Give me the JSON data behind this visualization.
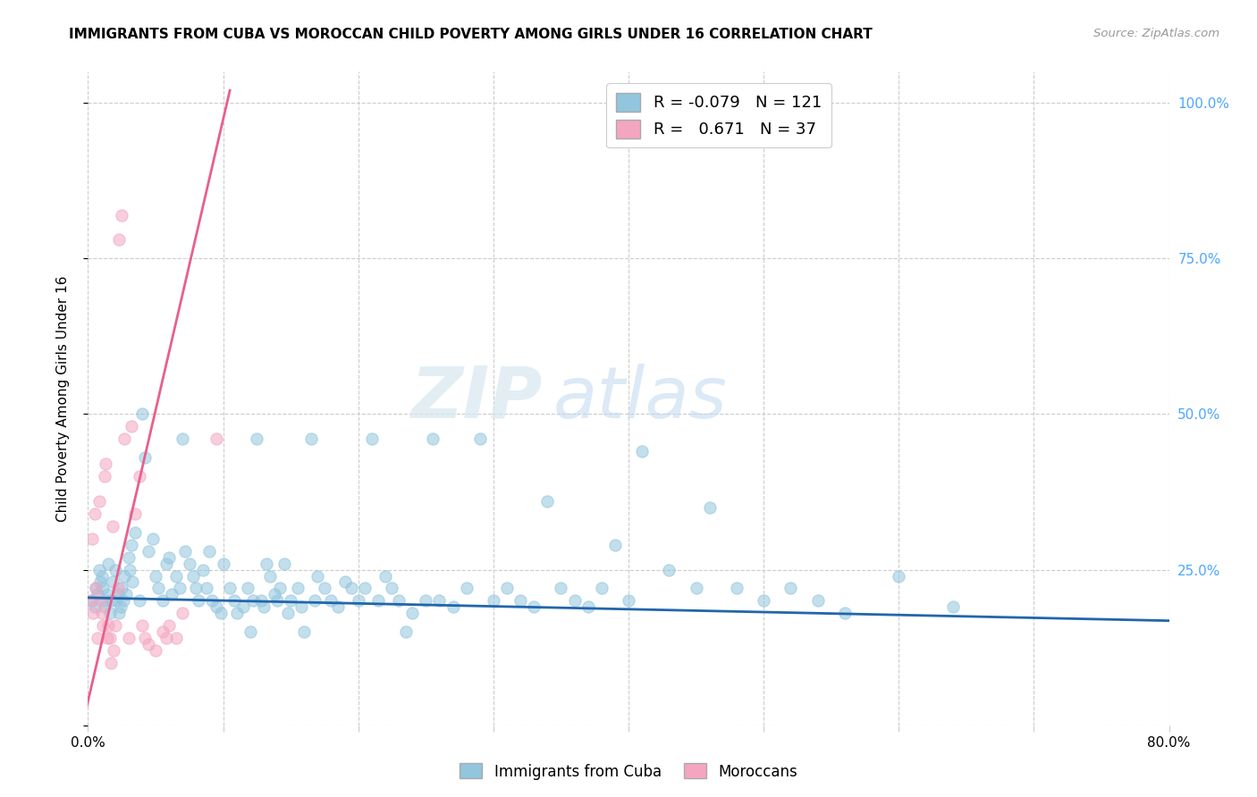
{
  "title": "IMMIGRANTS FROM CUBA VS MOROCCAN CHILD POVERTY AMONG GIRLS UNDER 16 CORRELATION CHART",
  "source": "Source: ZipAtlas.com",
  "ylabel": "Child Poverty Among Girls Under 16",
  "xlim": [
    0.0,
    0.8
  ],
  "ylim": [
    0.0,
    1.05
  ],
  "blue_color": "#92c5de",
  "pink_color": "#f4a6c0",
  "blue_line_color": "#2166ac",
  "pink_line_color": "#e8608a",
  "legend_blue_r": "-0.079",
  "legend_blue_n": "121",
  "legend_pink_r": "0.671",
  "legend_pink_n": "37",
  "blue_trendline_x": [
    0.0,
    0.8
  ],
  "blue_trendline_y": [
    0.205,
    0.168
  ],
  "pink_trendline_x": [
    -0.002,
    0.105
  ],
  "pink_trendline_y": [
    0.02,
    1.02
  ],
  "blue_scatter_x": [
    0.003,
    0.005,
    0.006,
    0.007,
    0.008,
    0.009,
    0.01,
    0.011,
    0.012,
    0.013,
    0.014,
    0.015,
    0.016,
    0.017,
    0.018,
    0.02,
    0.021,
    0.022,
    0.023,
    0.024,
    0.025,
    0.026,
    0.027,
    0.028,
    0.03,
    0.031,
    0.032,
    0.033,
    0.035,
    0.038,
    0.04,
    0.042,
    0.045,
    0.048,
    0.05,
    0.052,
    0.055,
    0.058,
    0.06,
    0.062,
    0.065,
    0.068,
    0.07,
    0.072,
    0.075,
    0.078,
    0.08,
    0.082,
    0.085,
    0.088,
    0.09,
    0.092,
    0.095,
    0.098,
    0.1,
    0.105,
    0.108,
    0.11,
    0.115,
    0.118,
    0.12,
    0.122,
    0.125,
    0.128,
    0.13,
    0.132,
    0.135,
    0.138,
    0.14,
    0.142,
    0.145,
    0.148,
    0.15,
    0.155,
    0.158,
    0.16,
    0.165,
    0.168,
    0.17,
    0.175,
    0.18,
    0.185,
    0.19,
    0.195,
    0.2,
    0.205,
    0.21,
    0.215,
    0.22,
    0.225,
    0.23,
    0.235,
    0.24,
    0.25,
    0.255,
    0.26,
    0.27,
    0.28,
    0.29,
    0.3,
    0.31,
    0.32,
    0.33,
    0.34,
    0.35,
    0.36,
    0.37,
    0.38,
    0.39,
    0.4,
    0.41,
    0.43,
    0.45,
    0.46,
    0.48,
    0.5,
    0.52,
    0.54,
    0.56,
    0.6,
    0.64
  ],
  "blue_scatter_y": [
    0.2,
    0.19,
    0.22,
    0.21,
    0.25,
    0.23,
    0.24,
    0.22,
    0.19,
    0.2,
    0.21,
    0.26,
    0.18,
    0.2,
    0.23,
    0.25,
    0.2,
    0.21,
    0.18,
    0.19,
    0.22,
    0.2,
    0.24,
    0.21,
    0.27,
    0.25,
    0.29,
    0.23,
    0.31,
    0.2,
    0.5,
    0.43,
    0.28,
    0.3,
    0.24,
    0.22,
    0.2,
    0.26,
    0.27,
    0.21,
    0.24,
    0.22,
    0.46,
    0.28,
    0.26,
    0.24,
    0.22,
    0.2,
    0.25,
    0.22,
    0.28,
    0.2,
    0.19,
    0.18,
    0.26,
    0.22,
    0.2,
    0.18,
    0.19,
    0.22,
    0.15,
    0.2,
    0.46,
    0.2,
    0.19,
    0.26,
    0.24,
    0.21,
    0.2,
    0.22,
    0.26,
    0.18,
    0.2,
    0.22,
    0.19,
    0.15,
    0.46,
    0.2,
    0.24,
    0.22,
    0.2,
    0.19,
    0.23,
    0.22,
    0.2,
    0.22,
    0.46,
    0.2,
    0.24,
    0.22,
    0.2,
    0.15,
    0.18,
    0.2,
    0.46,
    0.2,
    0.19,
    0.22,
    0.46,
    0.2,
    0.22,
    0.2,
    0.19,
    0.36,
    0.22,
    0.2,
    0.19,
    0.22,
    0.29,
    0.2,
    0.44,
    0.25,
    0.22,
    0.35,
    0.22,
    0.2,
    0.22,
    0.2,
    0.18,
    0.24,
    0.19
  ],
  "pink_scatter_x": [
    0.002,
    0.003,
    0.004,
    0.005,
    0.006,
    0.007,
    0.008,
    0.009,
    0.01,
    0.011,
    0.012,
    0.013,
    0.014,
    0.015,
    0.016,
    0.017,
    0.018,
    0.019,
    0.02,
    0.022,
    0.023,
    0.025,
    0.027,
    0.03,
    0.032,
    0.035,
    0.038,
    0.04,
    0.042,
    0.045,
    0.05,
    0.055,
    0.058,
    0.06,
    0.065,
    0.07,
    0.095
  ],
  "pink_scatter_y": [
    0.2,
    0.3,
    0.18,
    0.34,
    0.22,
    0.14,
    0.36,
    0.2,
    0.18,
    0.16,
    0.4,
    0.42,
    0.14,
    0.16,
    0.14,
    0.1,
    0.32,
    0.12,
    0.16,
    0.22,
    0.78,
    0.82,
    0.46,
    0.14,
    0.48,
    0.34,
    0.4,
    0.16,
    0.14,
    0.13,
    0.12,
    0.15,
    0.14,
    0.16,
    0.14,
    0.18,
    0.46
  ]
}
